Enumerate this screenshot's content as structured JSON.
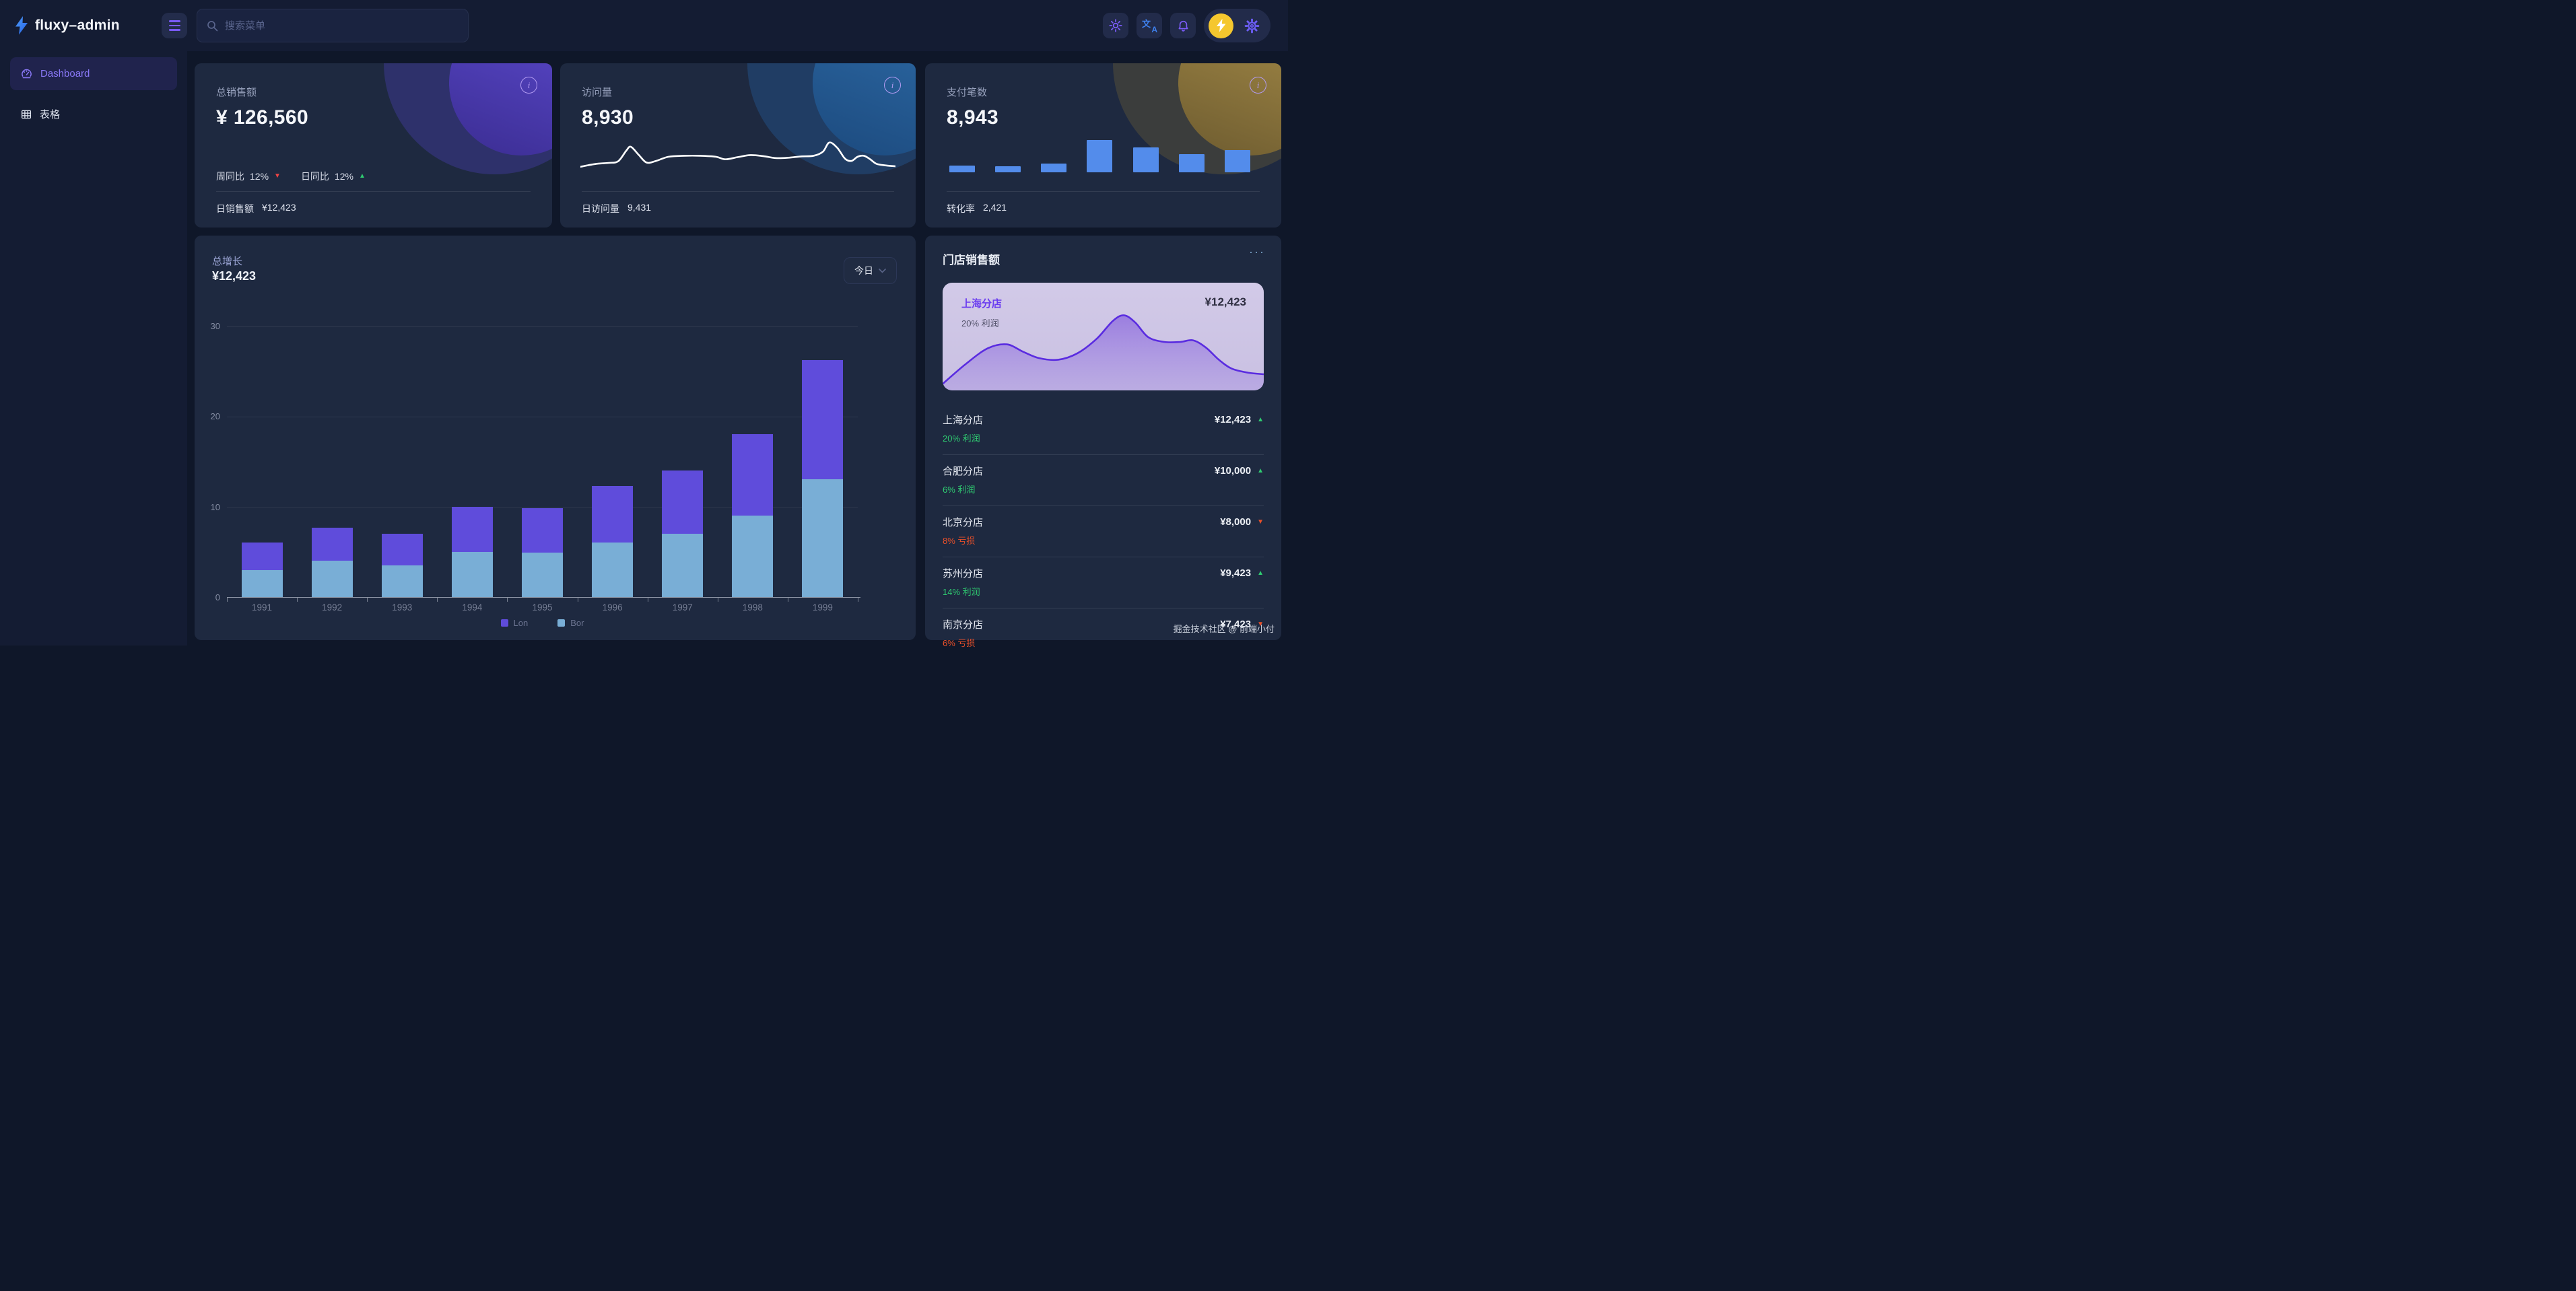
{
  "brand": {
    "name": "fluxy–admin"
  },
  "topbar": {
    "search_placeholder": "搜索菜单"
  },
  "sidebar": {
    "items": [
      {
        "label": "Dashboard"
      },
      {
        "label": "表格"
      }
    ]
  },
  "stat_cards": [
    {
      "label": "总销售额",
      "value": "¥ 126,560",
      "trends": [
        {
          "label": "周同比",
          "value": "12%",
          "dir": "down"
        },
        {
          "label": "日同比",
          "value": "12%",
          "dir": "up"
        }
      ],
      "footer_label": "日销售额",
      "footer_value": "¥12,423"
    },
    {
      "label": "访问量",
      "value": "8,930",
      "footer_label": "日访问量",
      "footer_value": "9,431"
    },
    {
      "label": "支付笔数",
      "value": "8,943",
      "footer_label": "转化率",
      "footer_value": "2,421"
    }
  ],
  "growth_card": {
    "title": "总增长",
    "value": "¥12,423",
    "range_label": "今日"
  },
  "store_panel": {
    "title": "门店销售额",
    "more": "···",
    "featured": {
      "name": "上海分店",
      "value": "¥12,423",
      "note": "20% 利润"
    },
    "rows": [
      {
        "name": "上海分店",
        "pct": "20% 利润",
        "dir": "up",
        "value": "¥12,423"
      },
      {
        "name": "合肥分店",
        "pct": "6% 利润",
        "dir": "up",
        "value": "¥10,000"
      },
      {
        "name": "北京分店",
        "pct": "8% 亏损",
        "dir": "down",
        "value": "¥8,000"
      },
      {
        "name": "苏州分店",
        "pct": "14% 利润",
        "dir": "up",
        "value": "¥9,423"
      },
      {
        "name": "南京分店",
        "pct": "6% 亏损",
        "dir": "down",
        "value": "¥7,423"
      }
    ]
  },
  "footer_note": "掘金技术社区 @ 前端小付",
  "colors": {
    "accent_purple": "#7c5cfa",
    "bar_purple": "#5f4cdb",
    "bar_blue": "#79aed6",
    "mini_bar_blue": "#538ceb",
    "up_green": "#2fcb71",
    "down_red": "#ef4444",
    "down_orange": "#e8502a",
    "avatar_yellow": "#f5c72e",
    "area_line": "#5a2ce0",
    "featured_bg": "#cdc5e4",
    "card_bg": "#1e2940",
    "chrome_bg": "#141c33",
    "page_bg": "#0f1729"
  },
  "chart_data": [
    {
      "id": "growth",
      "type": "bar",
      "stacked": true,
      "title": "总增长",
      "categories": [
        "1991",
        "1992",
        "1993",
        "1994",
        "1995",
        "1996",
        "1997",
        "1998",
        "1999"
      ],
      "series": [
        {
          "name": "Bor",
          "color": "#79aed6",
          "values": [
            3,
            4,
            3.5,
            5,
            4.9,
            6,
            7,
            9,
            13
          ]
        },
        {
          "name": "Lon",
          "color": "#5f4cdb",
          "values": [
            3,
            3.7,
            3.5,
            5,
            4.9,
            6.3,
            7,
            9,
            13.2
          ]
        }
      ],
      "legend": [
        "Lon",
        "Bor"
      ],
      "legend_position": "bottom",
      "xlabel": "",
      "ylabel": "",
      "ylim": [
        0,
        30
      ],
      "yticks": [
        0,
        10,
        20,
        30
      ],
      "grid": true
    },
    {
      "id": "visits_sparkline",
      "type": "line",
      "color": "#ffffff",
      "ylim": [
        0,
        1
      ],
      "points": [
        [
          0,
          0.13
        ],
        [
          0.05,
          0.22
        ],
        [
          0.09,
          0.25
        ],
        [
          0.12,
          0.3
        ],
        [
          0.145,
          0.62
        ],
        [
          0.16,
          0.75
        ],
        [
          0.185,
          0.5
        ],
        [
          0.21,
          0.26
        ],
        [
          0.24,
          0.31
        ],
        [
          0.28,
          0.44
        ],
        [
          0.33,
          0.47
        ],
        [
          0.38,
          0.47
        ],
        [
          0.43,
          0.44
        ],
        [
          0.46,
          0.36
        ],
        [
          0.5,
          0.43
        ],
        [
          0.54,
          0.49
        ],
        [
          0.58,
          0.46
        ],
        [
          0.62,
          0.4
        ],
        [
          0.66,
          0.41
        ],
        [
          0.7,
          0.45
        ],
        [
          0.74,
          0.47
        ],
        [
          0.77,
          0.6
        ],
        [
          0.79,
          0.88
        ],
        [
          0.815,
          0.72
        ],
        [
          0.84,
          0.38
        ],
        [
          0.86,
          0.31
        ],
        [
          0.88,
          0.44
        ],
        [
          0.9,
          0.47
        ],
        [
          0.92,
          0.36
        ],
        [
          0.94,
          0.22
        ],
        [
          0.97,
          0.17
        ],
        [
          1,
          0.145
        ]
      ]
    },
    {
      "id": "payments_minibars",
      "type": "bar",
      "color": "#538ceb",
      "ylim": [
        0,
        100
      ],
      "values": [
        20,
        18,
        27,
        96,
        74,
        55,
        66
      ]
    },
    {
      "id": "store_area",
      "type": "area",
      "line_color": "#5a2ce0",
      "ylim": [
        0,
        1
      ],
      "points": [
        [
          0,
          0.08
        ],
        [
          0.07,
          0.32
        ],
        [
          0.14,
          0.52
        ],
        [
          0.2,
          0.57
        ],
        [
          0.25,
          0.48
        ],
        [
          0.3,
          0.4
        ],
        [
          0.36,
          0.38
        ],
        [
          0.42,
          0.46
        ],
        [
          0.48,
          0.64
        ],
        [
          0.53,
          0.86
        ],
        [
          0.565,
          0.93
        ],
        [
          0.6,
          0.84
        ],
        [
          0.64,
          0.66
        ],
        [
          0.69,
          0.6
        ],
        [
          0.74,
          0.6
        ],
        [
          0.78,
          0.62
        ],
        [
          0.82,
          0.53
        ],
        [
          0.86,
          0.38
        ],
        [
          0.9,
          0.27
        ],
        [
          0.95,
          0.22
        ],
        [
          1,
          0.2
        ]
      ]
    }
  ]
}
